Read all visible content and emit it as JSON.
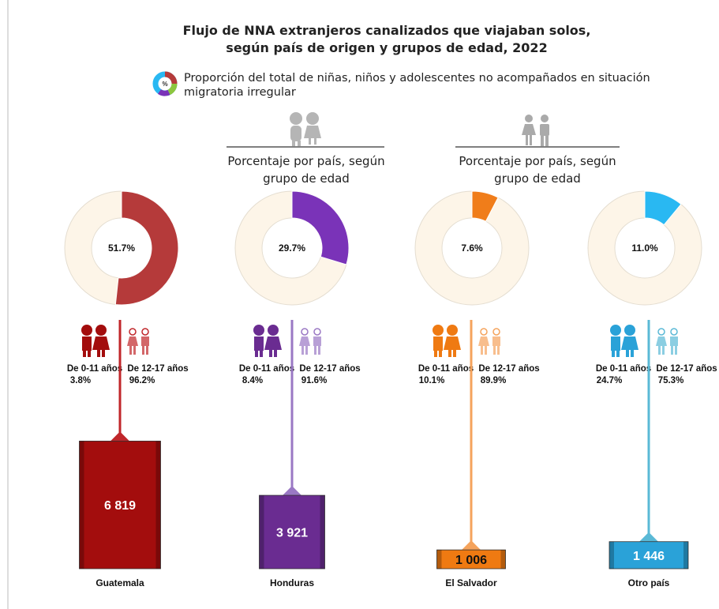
{
  "chart_data": {
    "type": "donut-bar",
    "title": "Flujo de NNA extranjeros canalizados que viajaban solos, según país de origen y grupos de edad, 2022",
    "note_icon": "%",
    "note": "Proporción del total de niñas, niños y adolescentes no acompañados en situación migratoria irregular",
    "subtitle": "Porcentaje por país, según grupo de edad",
    "categories": [
      "Guatemala",
      "Honduras",
      "El Salvador",
      "Otro país"
    ],
    "colors": [
      "#b53a3a",
      "#7a33b8",
      "#f07d1a",
      "#29b8f2"
    ],
    "bar_colors": [
      "#a30d0d",
      "#6a2c91",
      "#ef7a12",
      "#2aa2d8"
    ],
    "stem_colors": [
      "#c0262a",
      "#9a78c4",
      "#f5a35c",
      "#5ab9d6"
    ],
    "share": {
      "values": [
        51.7,
        29.7,
        7.6,
        11.0
      ],
      "value_labels": [
        "51.7%",
        "29.7%",
        "7.6%",
        "11.0%"
      ]
    },
    "age_series": [
      {
        "name": "De 0-11 años",
        "values": [
          3.8,
          8.4,
          10.1,
          24.7
        ],
        "value_labels": [
          "3.8%",
          "8.4%",
          "10.1%",
          "24.7%"
        ]
      },
      {
        "name": "De 12-17 años",
        "values": [
          96.2,
          91.6,
          89.9,
          75.3
        ],
        "value_labels": [
          "96.2%",
          "91.6%",
          "89.9%",
          "75.3%"
        ]
      }
    ],
    "totals": {
      "values": [
        6819,
        3921,
        1006,
        1446
      ],
      "value_labels": [
        "6 819",
        "3 921",
        "1 006",
        "1 446"
      ]
    }
  }
}
